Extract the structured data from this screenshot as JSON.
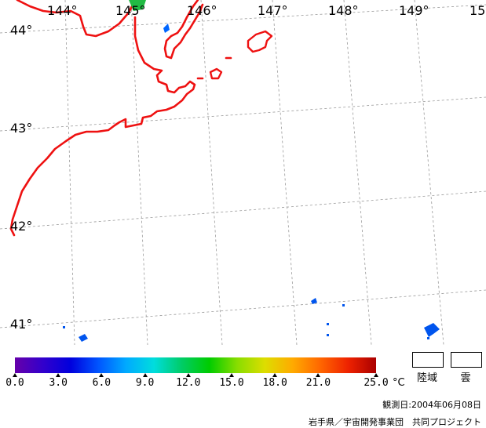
{
  "map": {
    "longitude_labels": [
      "144°",
      "145°",
      "146°",
      "147°",
      "148°",
      "149°",
      "15"
    ],
    "latitude_labels": [
      "44°",
      "43°",
      "42°",
      "41°"
    ],
    "coastline_color": "#ee1111",
    "grid_color": "#9a9a9a"
  },
  "colorbar": {
    "min": 0.0,
    "max": 25.0,
    "colors": [
      "#6600aa",
      "#3300cc",
      "#0000dd",
      "#0055ff",
      "#00aaff",
      "#00dddd",
      "#00cc66",
      "#00cc00",
      "#88dd00",
      "#dddd00",
      "#ffaa00",
      "#ff6600",
      "#ee2200",
      "#aa0000"
    ],
    "ticks": [
      {
        "value": 0.0,
        "label": "0.0"
      },
      {
        "value": 3.0,
        "label": "3.0"
      },
      {
        "value": 6.0,
        "label": "6.0"
      },
      {
        "value": 9.0,
        "label": "9.0"
      },
      {
        "value": 12.0,
        "label": "12.0"
      },
      {
        "value": 15.0,
        "label": "15.0"
      },
      {
        "value": 18.0,
        "label": "18.0"
      },
      {
        "value": 21.0,
        "label": "21.0"
      },
      {
        "value": 25.0,
        "label": "25.0"
      }
    ],
    "unit": "°C"
  },
  "legend": {
    "land_label": "陸域",
    "cloud_label": "雲"
  },
  "footer": {
    "observation_date": "観測日:2004年06月08日",
    "credit": "岩手県／宇宙開発事業団　共同プロジェクト"
  }
}
